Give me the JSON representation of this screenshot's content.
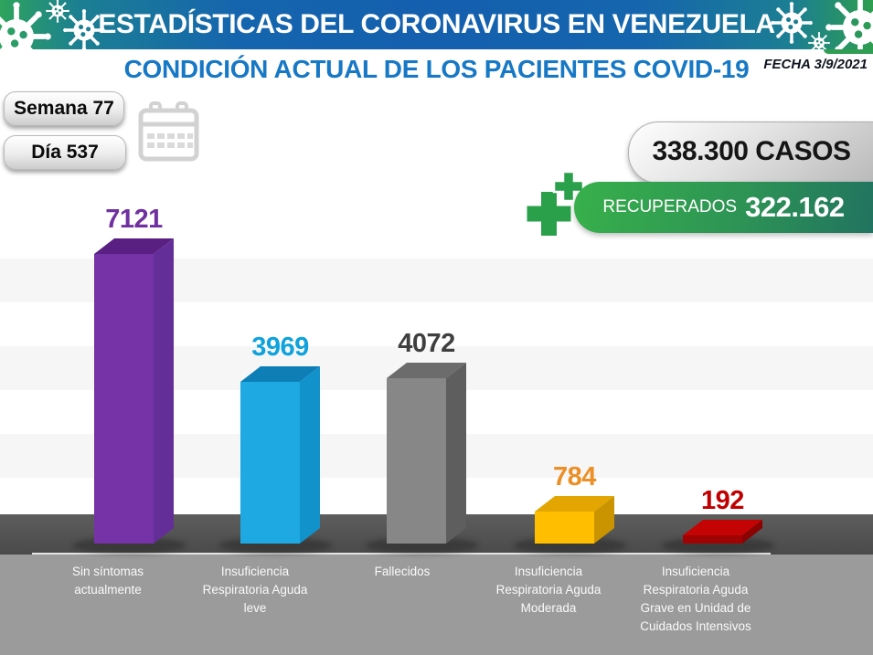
{
  "header": {
    "title": "ESTADÍSTICAS DEL CORONAVIRUS EN VENEZUELA"
  },
  "page": {
    "title": "CONDICIÓN ACTUAL DE LOS PACIENTES COVID-19",
    "date": "FECHA 3/9/2021"
  },
  "status": {
    "week": "Semana 77",
    "day": "Día 537",
    "cases": "338.300 CASOS",
    "recovered_label": "RECUPERADOS",
    "recovered_value": "322.162"
  },
  "icons": {
    "header_decoration": "virus-icon",
    "date": "calendar-icon",
    "recovered": "medical-cross-icon"
  },
  "theme": {
    "header_green": "#2EA45C",
    "header_blue": "#1565AE",
    "title_blue": "#1778C6",
    "badge_gray": "#CCCCCC",
    "recovered_green_start": "#38B04B",
    "recovered_green_end": "#21735F",
    "floor_dark": "#515151",
    "footer_gray": "#9B9B9B"
  },
  "chart_data": {
    "type": "bar",
    "style": "3d-column",
    "title": "CONDICIÓN ACTUAL DE LOS PACIENTES COVID-19",
    "categories": [
      [
        "Sin síntomas",
        "actualmente"
      ],
      [
        "Insuficiencia",
        "Respiratoria Aguda",
        "leve"
      ],
      [
        "Fallecidos"
      ],
      [
        "Insuficiencia",
        "Respiratoria Aguda",
        "Moderada"
      ],
      [
        "Insuficiencia",
        "Respiratoria Aguda",
        "Grave en Unidad de",
        "Cuidados Intensivos"
      ]
    ],
    "values": [
      7121,
      3969,
      4072,
      784,
      192
    ],
    "value_labels": [
      "7121",
      "3969",
      "4072",
      "784",
      "192"
    ],
    "colors": [
      {
        "front": "#7633A7",
        "top": "#591F83",
        "side": "#632E97",
        "label": "#7030A0"
      },
      {
        "front": "#1EA9E2",
        "top": "#0D7FB6",
        "side": "#1192CB",
        "label": "#0FA2DC"
      },
      {
        "front": "#878787",
        "top": "#6C6C6C",
        "side": "#5E5E5E",
        "label": "#3F3F3F"
      },
      {
        "front": "#FFBE00",
        "top": "#E3A600",
        "side": "#C99400",
        "label": "#EC8F25"
      },
      {
        "front": "#A00303",
        "top": "#C40404",
        "side": "#8A0202",
        "label": "#C00000"
      }
    ],
    "ylim": [
      0,
      7121
    ],
    "gridband_interval": 1000,
    "legend": "none",
    "grid": "horizontal-bands"
  }
}
